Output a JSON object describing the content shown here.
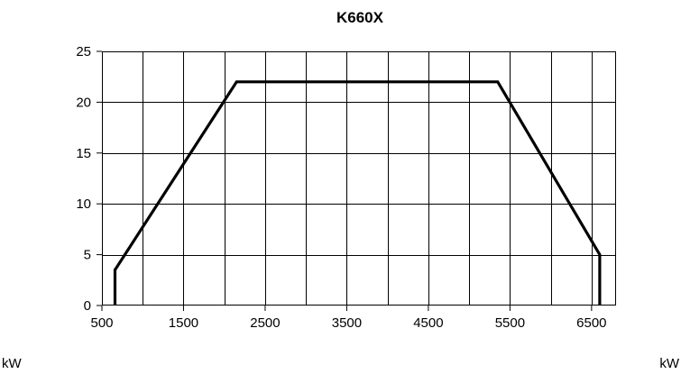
{
  "chart_data": {
    "type": "line",
    "title": "K660X",
    "x_unit_left": "kW",
    "x_unit_right": "kW",
    "xlim": [
      500,
      6800
    ],
    "ylim": [
      0,
      25
    ],
    "x_ticks": [
      500,
      1500,
      2500,
      3500,
      4500,
      5500,
      6500
    ],
    "y_ticks": [
      0,
      5,
      10,
      15,
      20,
      25
    ],
    "x_tick_labels": [
      "500",
      "1500",
      "2500",
      "3500",
      "4500",
      "5500",
      "6500"
    ],
    "y_tick_labels": [
      "0",
      "5",
      "10",
      "15",
      "20",
      "25"
    ],
    "x_grid_step": 500,
    "grid": true,
    "series": [
      {
        "x": [
          660,
          660,
          2150,
          5350,
          6600,
          6600
        ],
        "y": [
          0,
          3.5,
          22,
          22,
          5,
          0
        ]
      }
    ]
  }
}
